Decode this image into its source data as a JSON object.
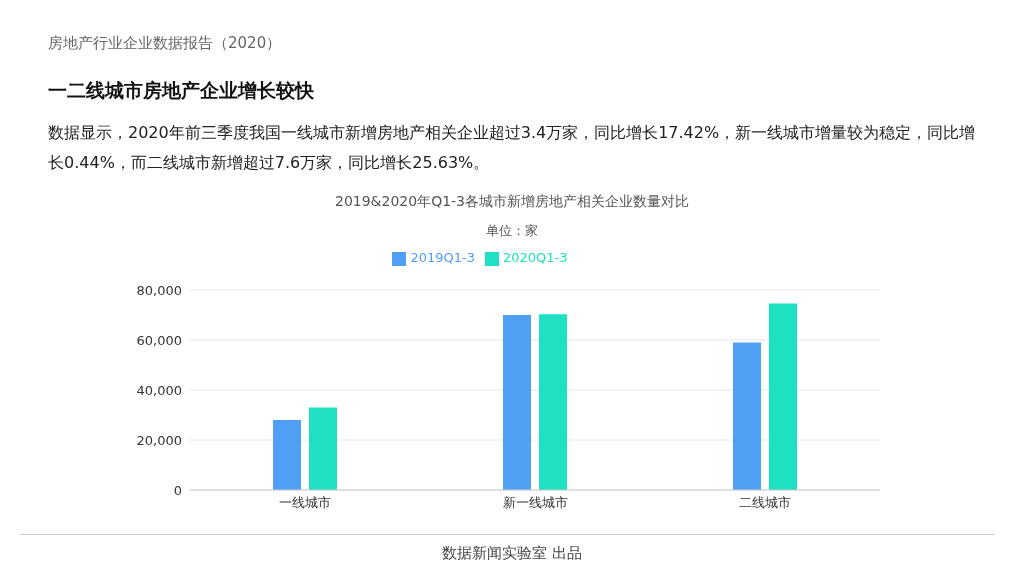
{
  "chart_data": {
    "type": "bar",
    "title": "2019&2020年Q1-3各城市新增房地产相关企业数量对比",
    "subtitle": "单位：家",
    "annotations": [
      "房地产行业企业数据报告（2020）",
      "一二线城市房地产企业增长较快",
      "数据显示，2020年前三季度我国一线城市新增房地产相关企业超过3.4万家，同比增长17.42%，新一线城市增量较为稳定，同比增长0.44%，而二线城市新增超过7.6万家，同比增长25.63%。",
      "数据新闻实验室 出品"
    ],
    "categories": [
      "一线城市",
      "新一线城市",
      "二线城市"
    ],
    "series": [
      {
        "name": "2019Q1-3",
        "color": "#4f9ff5",
        "values": [
          28000,
          70000,
          59000
        ]
      },
      {
        "name": "2020Q1-3",
        "color": "#1ee0c3",
        "values": [
          33000,
          70300,
          74600
        ]
      }
    ],
    "ylim": [
      0,
      80000
    ],
    "yticks": [
      0,
      {
        "value": 20000,
        "label": "20,000"
      },
      {
        "value": 40000,
        "label": "40,000"
      },
      {
        "value": 60000,
        "label": "60,000"
      },
      {
        "value": 80000,
        "label": "80,000"
      }
    ],
    "grid": "y",
    "legend": "top"
  }
}
